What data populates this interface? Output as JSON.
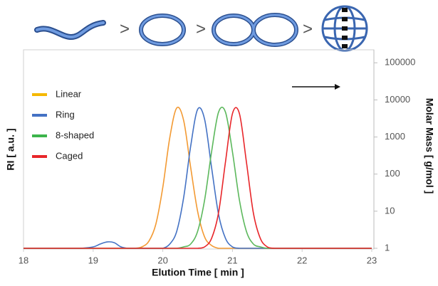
{
  "chart_data": {
    "type": "line",
    "annotations": [
      ">",
      ">",
      ">"
    ],
    "xlabel": "Elution Time [ min ]",
    "ylabel": "RI [ a.u. ]",
    "y2label": "Molar Mass [ g/mol ]",
    "x": [
      18,
      18.5,
      18.8,
      19,
      19.1,
      19.2,
      19.3,
      19.4,
      19.5,
      19.6,
      19.7,
      19.8,
      19.9,
      20,
      20.1,
      20.2,
      20.3,
      20.4,
      20.5,
      20.6,
      20.7,
      20.8,
      20.9,
      21,
      21.1,
      21.2,
      21.3,
      21.4,
      21.5,
      21.6,
      21.7,
      21.8,
      22,
      22.5,
      23
    ],
    "series": [
      {
        "name": "Linear",
        "color": "#f39a33",
        "legend_color": "#f5b800",
        "values": [
          0,
          0,
          0,
          0,
          0,
          0,
          0,
          0,
          0,
          0,
          0.01,
          0.05,
          0.17,
          0.43,
          0.78,
          0.99,
          0.9,
          0.57,
          0.26,
          0.08,
          0.02,
          0,
          0,
          0,
          0,
          0,
          0,
          0,
          0,
          0,
          0,
          0,
          0,
          0,
          0
        ]
      },
      {
        "name": "Ring",
        "color": "#4472c4",
        "legend_color": "#4472c4",
        "values": [
          0,
          0,
          0,
          0.01,
          0.03,
          0.045,
          0.04,
          0.01,
          0,
          0,
          0,
          0,
          0,
          0,
          0.03,
          0.12,
          0.36,
          0.72,
          0.98,
          0.91,
          0.57,
          0.24,
          0.07,
          0.01,
          0,
          0,
          0,
          0,
          0,
          0,
          0,
          0,
          0,
          0,
          0
        ]
      },
      {
        "name": "8-shaped",
        "color": "#5cb85c",
        "legend_color": "#3cb44b",
        "values": [
          0,
          0,
          0,
          0,
          0,
          0,
          0,
          0,
          0,
          0,
          0,
          0,
          0,
          0,
          0,
          0,
          0.01,
          0.03,
          0.12,
          0.34,
          0.68,
          0.96,
          0.96,
          0.68,
          0.34,
          0.12,
          0.03,
          0.01,
          0,
          0,
          0,
          0,
          0,
          0,
          0
        ]
      },
      {
        "name": "Caged",
        "color": "#e8262a",
        "legend_color": "#e8262a",
        "values": [
          0,
          0,
          0,
          0,
          0,
          0,
          0,
          0,
          0,
          0,
          0,
          0,
          0,
          0,
          0,
          0,
          0,
          0,
          0,
          0.01,
          0.07,
          0.25,
          0.61,
          0.95,
          0.95,
          0.61,
          0.25,
          0.07,
          0.01,
          0,
          0,
          0,
          0,
          0,
          0
        ]
      }
    ],
    "xlim": [
      18,
      23
    ],
    "xticks": [
      18,
      19,
      20,
      21,
      22,
      23
    ],
    "ylim": [
      0,
      1.4
    ],
    "y2lim": [
      1,
      224000
    ],
    "y2ticks": [
      1,
      10,
      100,
      1000,
      10000,
      100000
    ],
    "y2_scale": "log",
    "legend": "upper left"
  }
}
